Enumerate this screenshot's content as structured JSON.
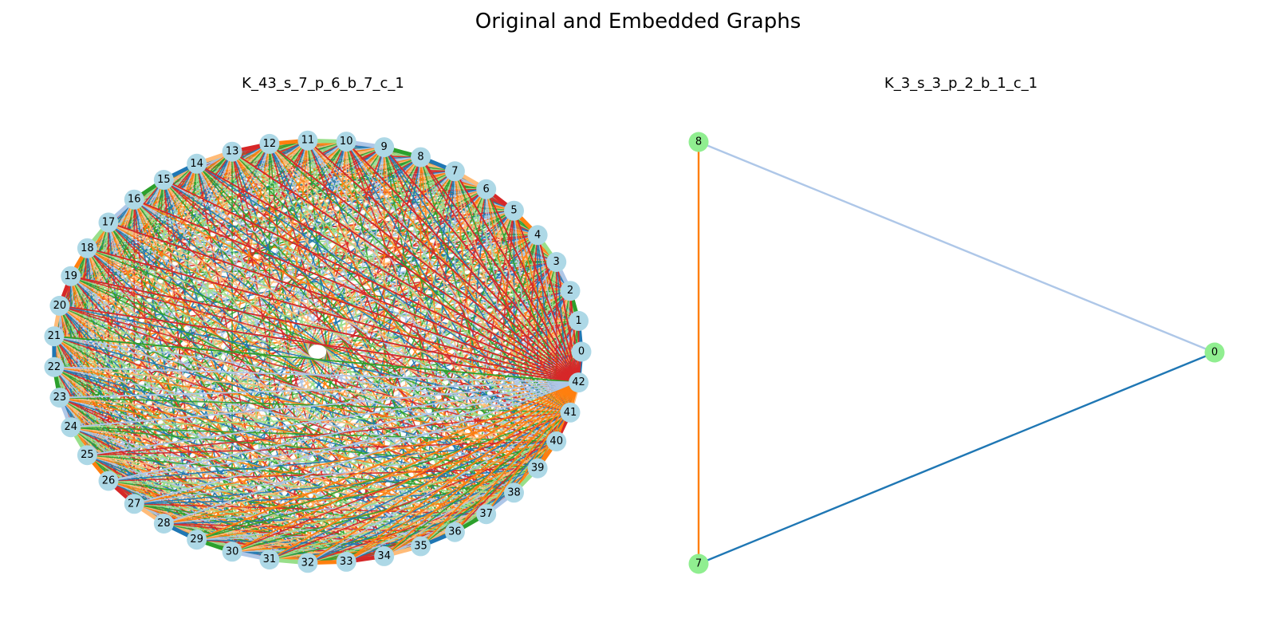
{
  "figure": {
    "title": "Original and Embedded Graphs"
  },
  "original_graph": {
    "title": "K_43_s_7_p_6_b_7_c_1",
    "node_count": 43,
    "node_color": "#add8e6",
    "edge_palette": [
      "#1f77b4",
      "#ff7f0e",
      "#2ca02c",
      "#d62728",
      "#aec7e8",
      "#ffbb78",
      "#98df8a"
    ]
  },
  "embedded_graph": {
    "title": "K_3_s_3_p_2_b_1_c_1",
    "node_color": "#90ee90",
    "nodes": [
      "8",
      "0",
      "7"
    ],
    "edges": [
      {
        "from": "8",
        "to": "0",
        "color": "#aec7e8"
      },
      {
        "from": "0",
        "to": "7",
        "color": "#1f77b4"
      },
      {
        "from": "8",
        "to": "7",
        "color": "#ff7f0e"
      }
    ]
  }
}
